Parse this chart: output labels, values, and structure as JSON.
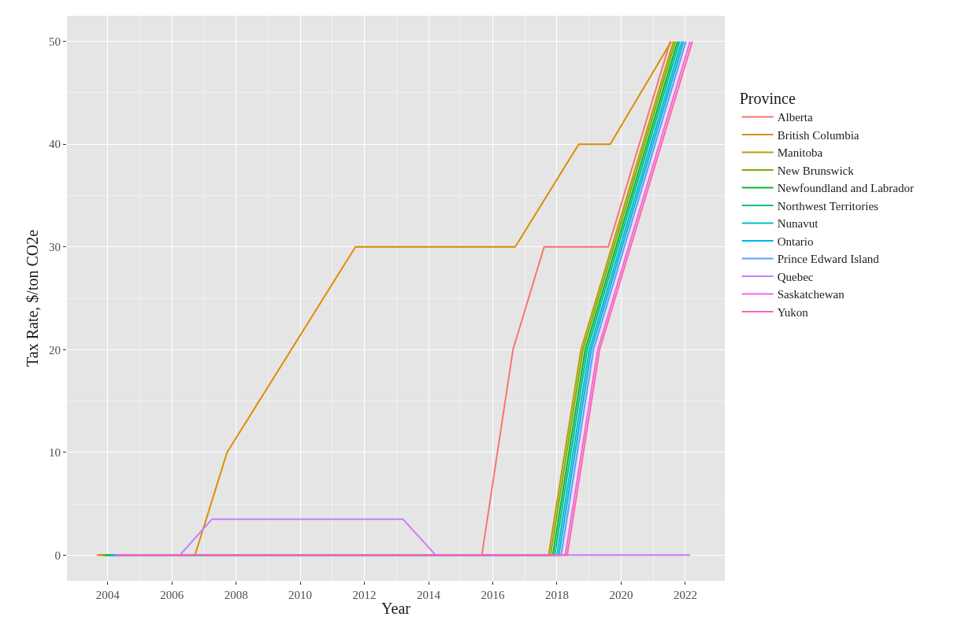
{
  "chart_data": {
    "type": "line",
    "xlabel": "Year",
    "ylabel": "Tax Rate, $/ton CO2e",
    "legend_title": "Province",
    "legend": "right",
    "grid": true,
    "line_style": "solid",
    "marker": "none",
    "xlim": [
      2002.73,
      2023.23
    ],
    "xticks": [
      2004,
      2006,
      2008,
      2010,
      2012,
      2014,
      2016,
      2018,
      2020,
      2022
    ],
    "ylim": [
      -2.5,
      52.5
    ],
    "yticks": [
      0,
      10,
      20,
      30,
      40,
      50
    ],
    "series": [
      {
        "name": "Alberta",
        "color": "#f8766d",
        "x": [
          2003.66,
          2015.66,
          2016.63,
          2017.6,
          2019.6,
          2021.53
        ],
        "values": [
          0,
          0,
          20,
          30,
          30,
          50
        ]
      },
      {
        "name": "British Columbia",
        "color": "#de8c00",
        "x": [
          2003.72,
          2006.72,
          2007.72,
          2011.72,
          2016.7,
          2018.68,
          2019.66,
          2021.56
        ],
        "values": [
          0,
          0,
          10,
          30,
          30,
          40,
          40,
          50
        ]
      },
      {
        "name": "Manitoba",
        "color": "#b79f00",
        "x": [
          2003.79,
          2017.74,
          2018.75,
          2021.63
        ],
        "values": [
          0,
          0,
          20,
          50
        ]
      },
      {
        "name": "New Brunswick",
        "color": "#7cae00",
        "x": [
          2003.86,
          2017.8,
          2018.81,
          2021.69
        ],
        "values": [
          0,
          0,
          20,
          50
        ]
      },
      {
        "name": "Newfoundland and Labrador",
        "color": "#00ba38",
        "x": [
          2003.92,
          2017.87,
          2018.88,
          2021.76
        ],
        "values": [
          0,
          0,
          20,
          50
        ]
      },
      {
        "name": "Northwest Territories",
        "color": "#00c08b",
        "x": [
          2003.99,
          2017.93,
          2018.94,
          2021.82
        ],
        "values": [
          0,
          0,
          20,
          50
        ]
      },
      {
        "name": "Nunavut",
        "color": "#00bfc4",
        "x": [
          2004.05,
          2018,
          2019.01,
          2021.89
        ],
        "values": [
          0,
          0,
          20,
          50
        ]
      },
      {
        "name": "Ontario",
        "color": "#00b4f0",
        "x": [
          2004.12,
          2018.06,
          2019.07,
          2021.95
        ],
        "values": [
          0,
          0,
          20,
          50
        ]
      },
      {
        "name": "Prince Edward Island",
        "color": "#619cff",
        "x": [
          2004.18,
          2018.13,
          2019.14,
          2022.02
        ],
        "values": [
          0,
          0,
          20,
          50
        ]
      },
      {
        "name": "Quebec",
        "color": "#c77cff",
        "x": [
          2004.25,
          2006.25,
          2007.25,
          2013.2,
          2014.22,
          2022.15
        ],
        "values": [
          0,
          0,
          3.5,
          3.5,
          0,
          0
        ]
      },
      {
        "name": "Saskatchewan",
        "color": "#f564e3",
        "x": [
          2004.31,
          2018.26,
          2019.27,
          2022.15
        ],
        "values": [
          0,
          0,
          20,
          50
        ]
      },
      {
        "name": "Yukon",
        "color": "#ff64b0",
        "x": [
          2004.38,
          2018.32,
          2019.33,
          2022.22
        ],
        "values": [
          0,
          0,
          20,
          50
        ]
      }
    ]
  }
}
